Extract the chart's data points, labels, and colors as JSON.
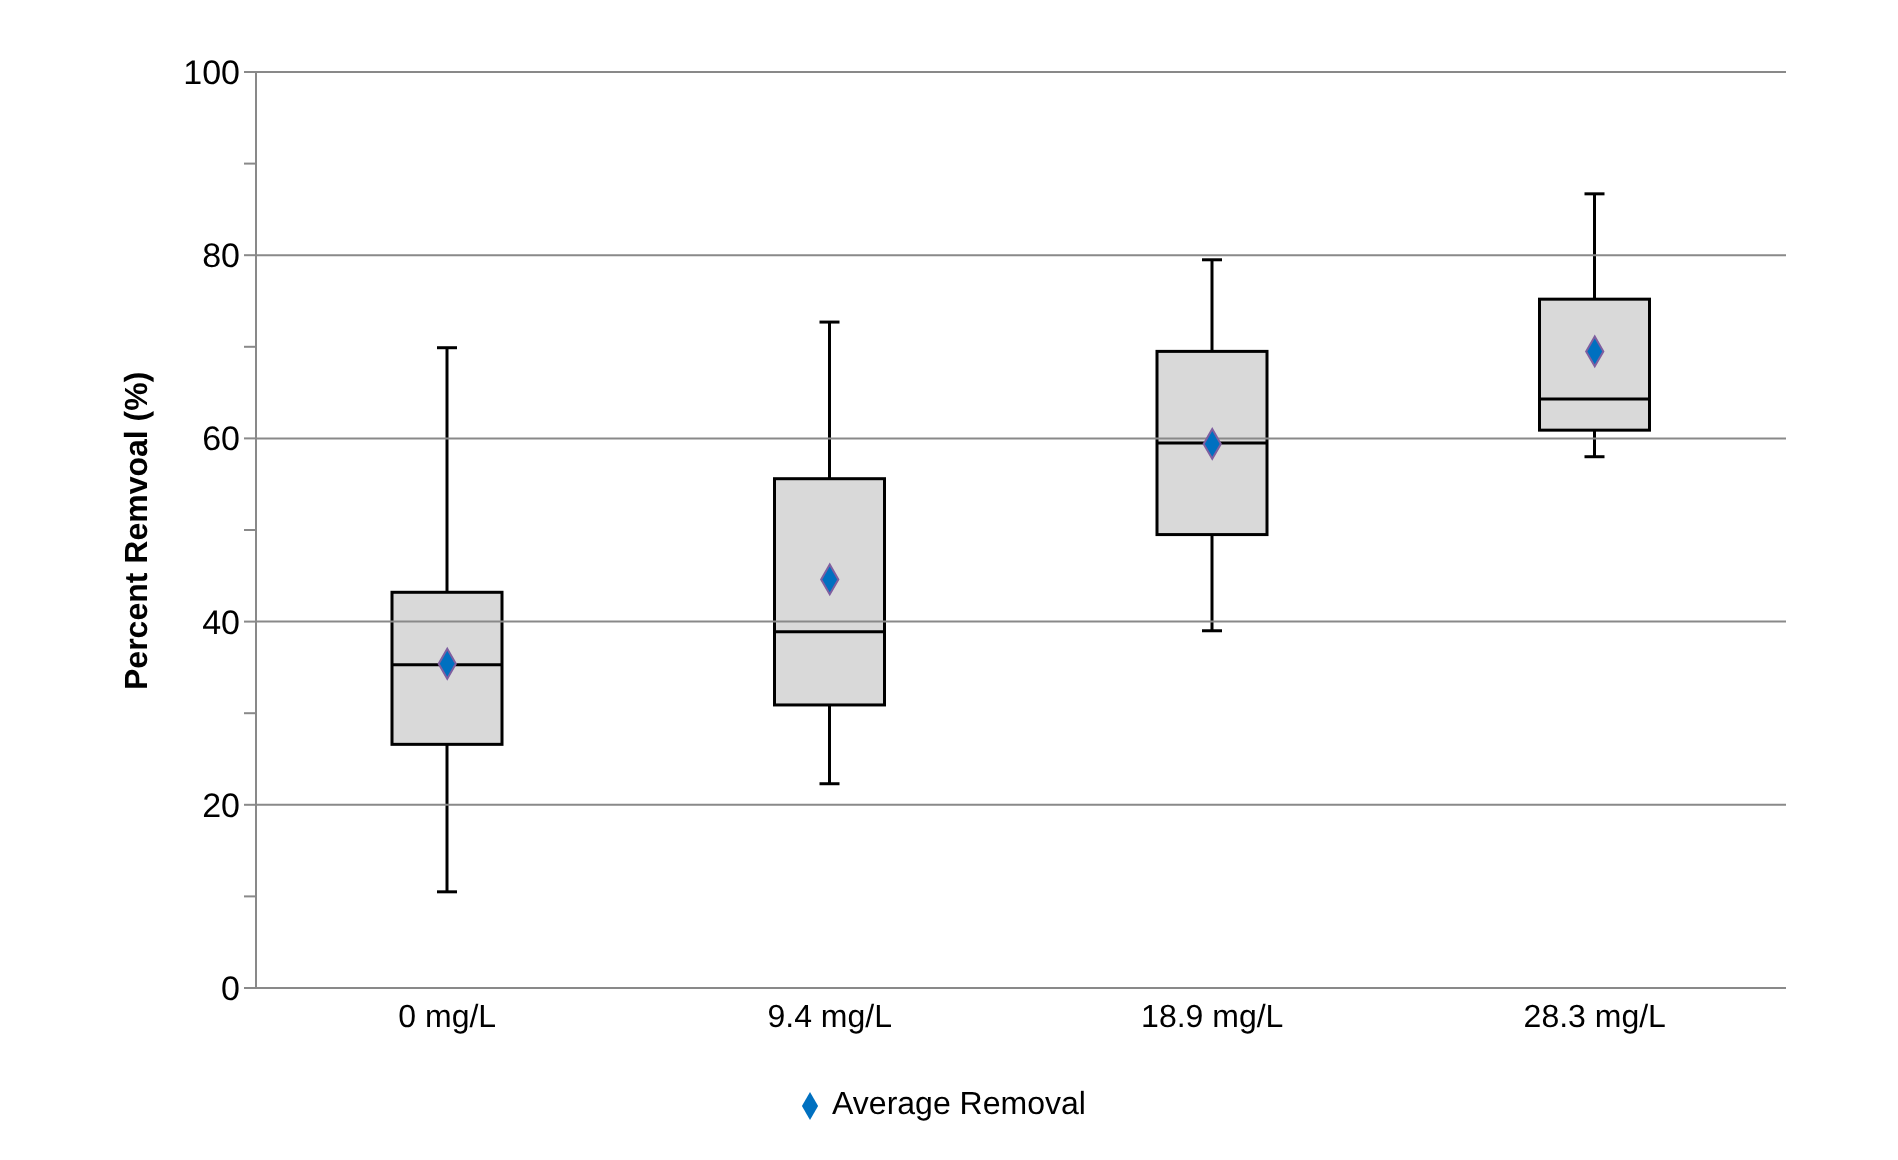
{
  "chart_data": {
    "type": "box",
    "ylabel": "Percent Remvoal (%)",
    "categories": [
      "0 mg/L",
      "9.4 mg/L",
      "18.9 mg/L",
      "28.3 mg/L"
    ],
    "boxes": [
      {
        "low": 10.5,
        "q1": 26.6,
        "median": 35.3,
        "q3": 43.2,
        "high": 69.9
      },
      {
        "low": 22.3,
        "q1": 30.9,
        "median": 38.9,
        "q3": 55.6,
        "high": 72.7
      },
      {
        "low": 39.0,
        "q1": 49.5,
        "median": 59.5,
        "q3": 69.5,
        "high": 79.5
      },
      {
        "low": 58.0,
        "q1": 60.9,
        "median": 64.3,
        "q3": 75.2,
        "high": 86.7
      }
    ],
    "series": [
      {
        "name": "Average Removal",
        "type": "scatter",
        "color": "#0070c0",
        "values": [
          35.4,
          44.6,
          59.4,
          69.5
        ]
      }
    ],
    "marker": "diamond",
    "ylim": [
      0,
      100
    ],
    "yticks": [
      0,
      {
        "value": 10,
        "label": null
      },
      20,
      {
        "value": 30,
        "label": null
      },
      40,
      {
        "value": 50,
        "label": null
      },
      60,
      {
        "value": 70,
        "label": null
      },
      80,
      {
        "value": 90,
        "label": null
      },
      100
    ],
    "grid": "y",
    "legend": "bottom"
  }
}
